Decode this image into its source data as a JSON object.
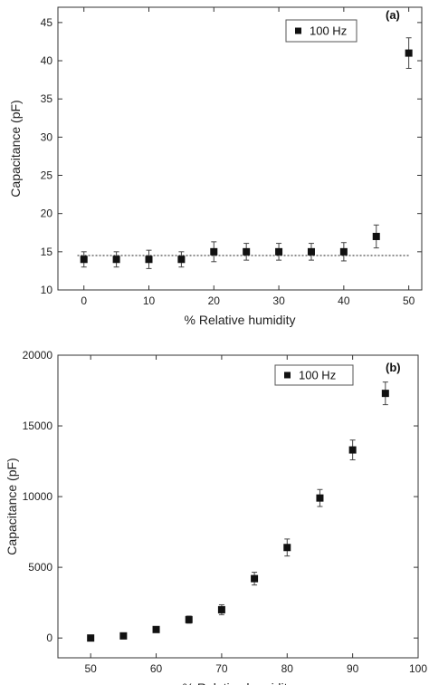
{
  "chart_data": [
    {
      "type": "scatter",
      "panel_label": "(a)",
      "xlabel": "% Relative humidity",
      "ylabel": "Capacitance (pF)",
      "xlim": [
        -4,
        52
      ],
      "ylim": [
        10,
        47
      ],
      "x_ticks": [
        0,
        10,
        20,
        30,
        40,
        50
      ],
      "y_ticks": [
        10,
        15,
        20,
        25,
        30,
        35,
        40,
        45
      ],
      "x_tick_labels": [
        "0",
        "10",
        "20",
        "30",
        "40",
        "50"
      ],
      "y_tick_labels": [
        "10",
        "15",
        "20",
        "25",
        "30",
        "35",
        "40",
        "45"
      ],
      "legend": {
        "position": "top-right",
        "entries": [
          "100 Hz"
        ]
      },
      "grid": false,
      "reference_line": {
        "style": "dotted",
        "y": 14.5,
        "x_range": [
          -1,
          50
        ]
      },
      "series": [
        {
          "name": "100 Hz",
          "marker": "square",
          "x": [
            0,
            5,
            10,
            15,
            20,
            25,
            30,
            35,
            40,
            45,
            50
          ],
          "y": [
            14,
            14,
            14,
            14,
            15,
            15,
            15,
            15,
            15,
            17,
            41
          ],
          "error": [
            1,
            1,
            1.2,
            1,
            1.3,
            1.1,
            1.1,
            1.1,
            1.2,
            1.5,
            2
          ]
        }
      ]
    },
    {
      "type": "scatter",
      "panel_label": "(b)",
      "xlabel": "% Relative humidity",
      "ylabel": "Capacitance (pF)",
      "xlim": [
        45,
        100
      ],
      "ylim": [
        -1400,
        20000
      ],
      "x_ticks": [
        50,
        60,
        70,
        80,
        90,
        100
      ],
      "y_ticks": [
        0,
        5000,
        10000,
        15000,
        20000
      ],
      "x_tick_labels": [
        "50",
        "60",
        "70",
        "80",
        "90",
        "100"
      ],
      "y_tick_labels": [
        "0",
        "5000",
        "10000",
        "15000",
        "20000"
      ],
      "legend": {
        "position": "top-right",
        "entries": [
          "100 Hz"
        ]
      },
      "grid": false,
      "series": [
        {
          "name": "100 Hz",
          "marker": "square",
          "x": [
            50,
            55,
            60,
            65,
            70,
            75,
            80,
            85,
            90,
            95
          ],
          "y": [
            0,
            150,
            600,
            1300,
            2000,
            4200,
            6400,
            9900,
            13300,
            17300
          ],
          "error": [
            0,
            0,
            0,
            250,
            350,
            450,
            600,
            600,
            700,
            800
          ]
        }
      ]
    }
  ]
}
